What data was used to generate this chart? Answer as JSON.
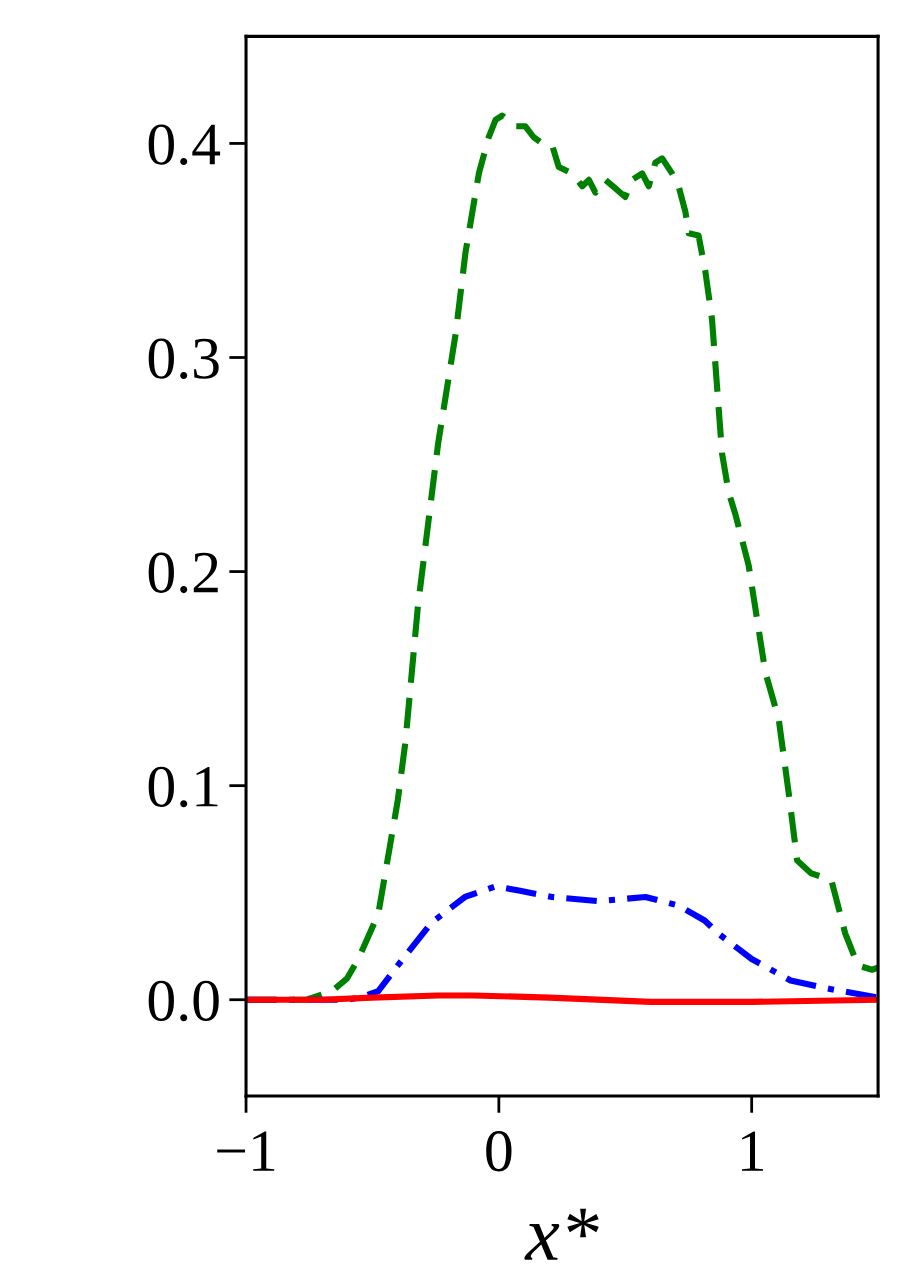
{
  "chart_data": {
    "type": "line",
    "xlabel": "x*",
    "xlim": [
      -1,
      1.5
    ],
    "ylim": [
      -0.045,
      0.45
    ],
    "xticks": [
      {
        "value": -1,
        "label": "−1"
      },
      {
        "value": 0,
        "label": "0"
      },
      {
        "value": 1,
        "label": "1"
      }
    ],
    "yticks": [
      {
        "value": 0,
        "label": "0.0"
      },
      {
        "value": 0.1,
        "label": "0.1"
      },
      {
        "value": 0.2,
        "label": "0.2"
      },
      {
        "value": 0.3,
        "label": "0.3"
      },
      {
        "value": 0.4,
        "label": "0.4"
      }
    ],
    "grid": false,
    "legend": false,
    "series": [
      {
        "color": "#008000",
        "line_style": "dashed",
        "x": [
          -1,
          -0.76,
          -0.66,
          -0.6,
          -0.556,
          -0.477,
          -0.4,
          -0.37,
          -0.32,
          -0.24,
          -0.171,
          -0.132,
          -0.079,
          -0.04,
          -0.013,
          0.013,
          0.066,
          0.105,
          0.137,
          0.171,
          0.211,
          0.237,
          0.29,
          0.33,
          0.356,
          0.382,
          0.421,
          0.461,
          0.5,
          0.527,
          0.567,
          0.593,
          0.619,
          0.646,
          0.685,
          0.711,
          0.738,
          0.751,
          0.79,
          0.817,
          0.843,
          0.883,
          0.909,
          0.935,
          0.988,
          1.054,
          1.107,
          1.146,
          1.18,
          1.236,
          1.315,
          1.37,
          1.42,
          1.476,
          1.5
        ],
        "values": [
          0,
          0,
          0.004,
          0.01,
          0.019,
          0.04,
          0.093,
          0.12,
          0.184,
          0.26,
          0.311,
          0.349,
          0.386,
          0.403,
          0.411,
          0.413,
          0.408,
          0.408,
          0.403,
          0.4,
          0.399,
          0.389,
          0.386,
          0.38,
          0.383,
          0.377,
          0.383,
          0.379,
          0.375,
          0.383,
          0.386,
          0.38,
          0.391,
          0.393,
          0.386,
          0.38,
          0.368,
          0.358,
          0.357,
          0.34,
          0.318,
          0.255,
          0.237,
          0.227,
          0.203,
          0.153,
          0.131,
          0.097,
          0.065,
          0.059,
          0.056,
          0.031,
          0.016,
          0.014,
          0.015
        ]
      },
      {
        "color": "#0000ff",
        "line_style": "dashdot",
        "x": [
          -1,
          -0.6,
          -0.55,
          -0.477,
          -0.4,
          -0.266,
          -0.134,
          -0.013,
          0.079,
          0.211,
          0.395,
          0.58,
          0.71,
          0.814,
          0.867,
          1.0,
          1.154,
          1.31,
          1.5
        ],
        "values": [
          0,
          0,
          0.001,
          0.004,
          0.016,
          0.036,
          0.048,
          0.053,
          0.051,
          0.048,
          0.046,
          0.048,
          0.044,
          0.037,
          0.031,
          0.019,
          0.009,
          0.005,
          0.001
        ]
      },
      {
        "color": "#ff0000",
        "line_style": "solid",
        "x": [
          -1,
          -0.7,
          -0.5,
          -0.24,
          -0.1,
          0.2,
          0.6,
          1.0,
          1.5
        ],
        "values": [
          0,
          0,
          0.001,
          0.002,
          0.002,
          0.001,
          -0.001,
          -0.001,
          0
        ]
      }
    ]
  }
}
